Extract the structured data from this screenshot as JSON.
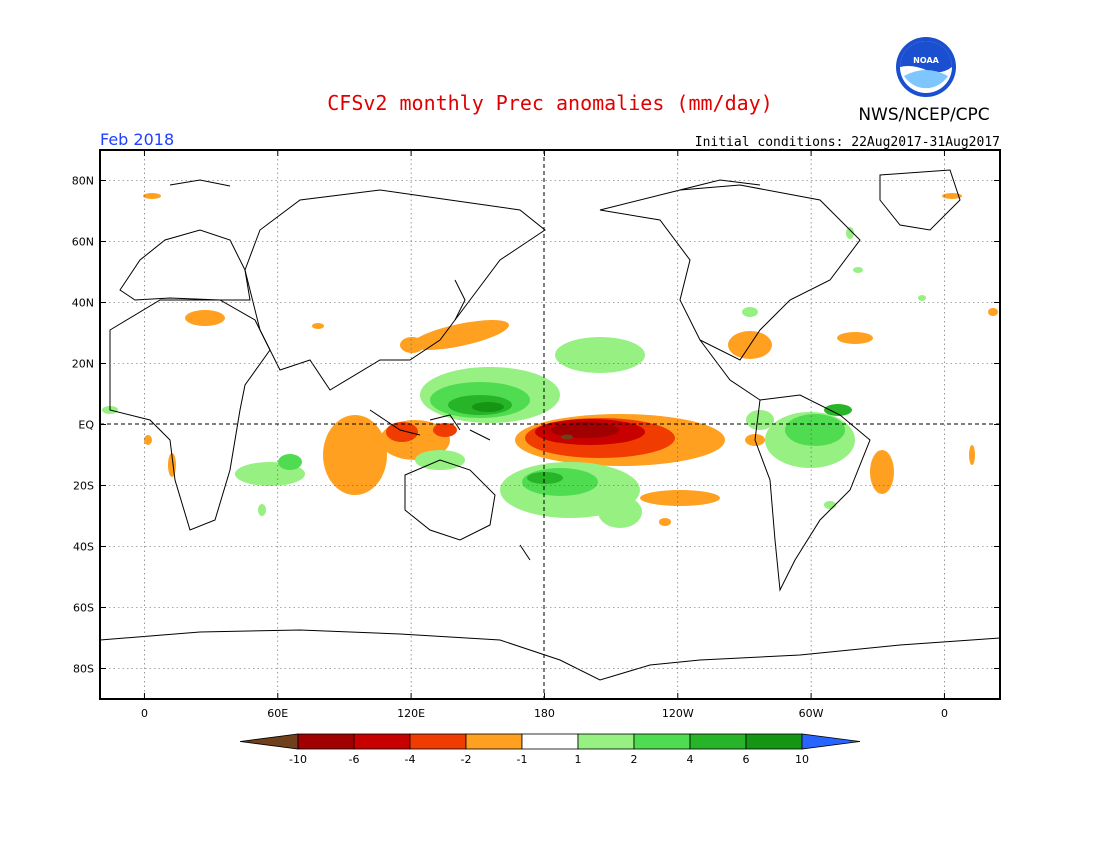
{
  "header": {
    "title": "CFSv2 monthly Prec anomalies (mm/day)",
    "month_label": "Feb 2018",
    "agency": "NWS/NCEP/CPC",
    "initial_conditions": "Initial conditions: 22Aug2017-31Aug2017",
    "title_color": "#e00000",
    "month_color": "#2040ff"
  },
  "logo": {
    "icon": "noaa-logo-icon",
    "text": "NOAA"
  },
  "map": {
    "lat_labels": [
      "80N",
      "60N",
      "40N",
      "20N",
      "EQ",
      "20S",
      "40S",
      "60S",
      "80S"
    ],
    "lat_values": [
      80,
      60,
      40,
      20,
      0,
      -20,
      -40,
      -60,
      -80
    ],
    "lon_labels": [
      "0",
      "60E",
      "120E",
      "180",
      "120W",
      "60W",
      "0"
    ],
    "lon_values": [
      0,
      60,
      120,
      180,
      240,
      300,
      360
    ],
    "lon_range": [
      -20,
      385
    ],
    "lat_range": [
      -90,
      90
    ],
    "equator_dashed": true,
    "dateline_dashed": true,
    "grid": "dotted"
  },
  "colorbar": {
    "ticks": [
      "-10",
      "-6",
      "-4",
      "-2",
      "-1",
      "1",
      "2",
      "4",
      "6",
      "10"
    ],
    "colors": [
      "#70401c",
      "#a00000",
      "#c80000",
      "#f03c00",
      "#ffa020",
      "#ffffff",
      "#96f082",
      "#50dc50",
      "#28b428",
      "#149614",
      "#2864ff"
    ]
  }
}
